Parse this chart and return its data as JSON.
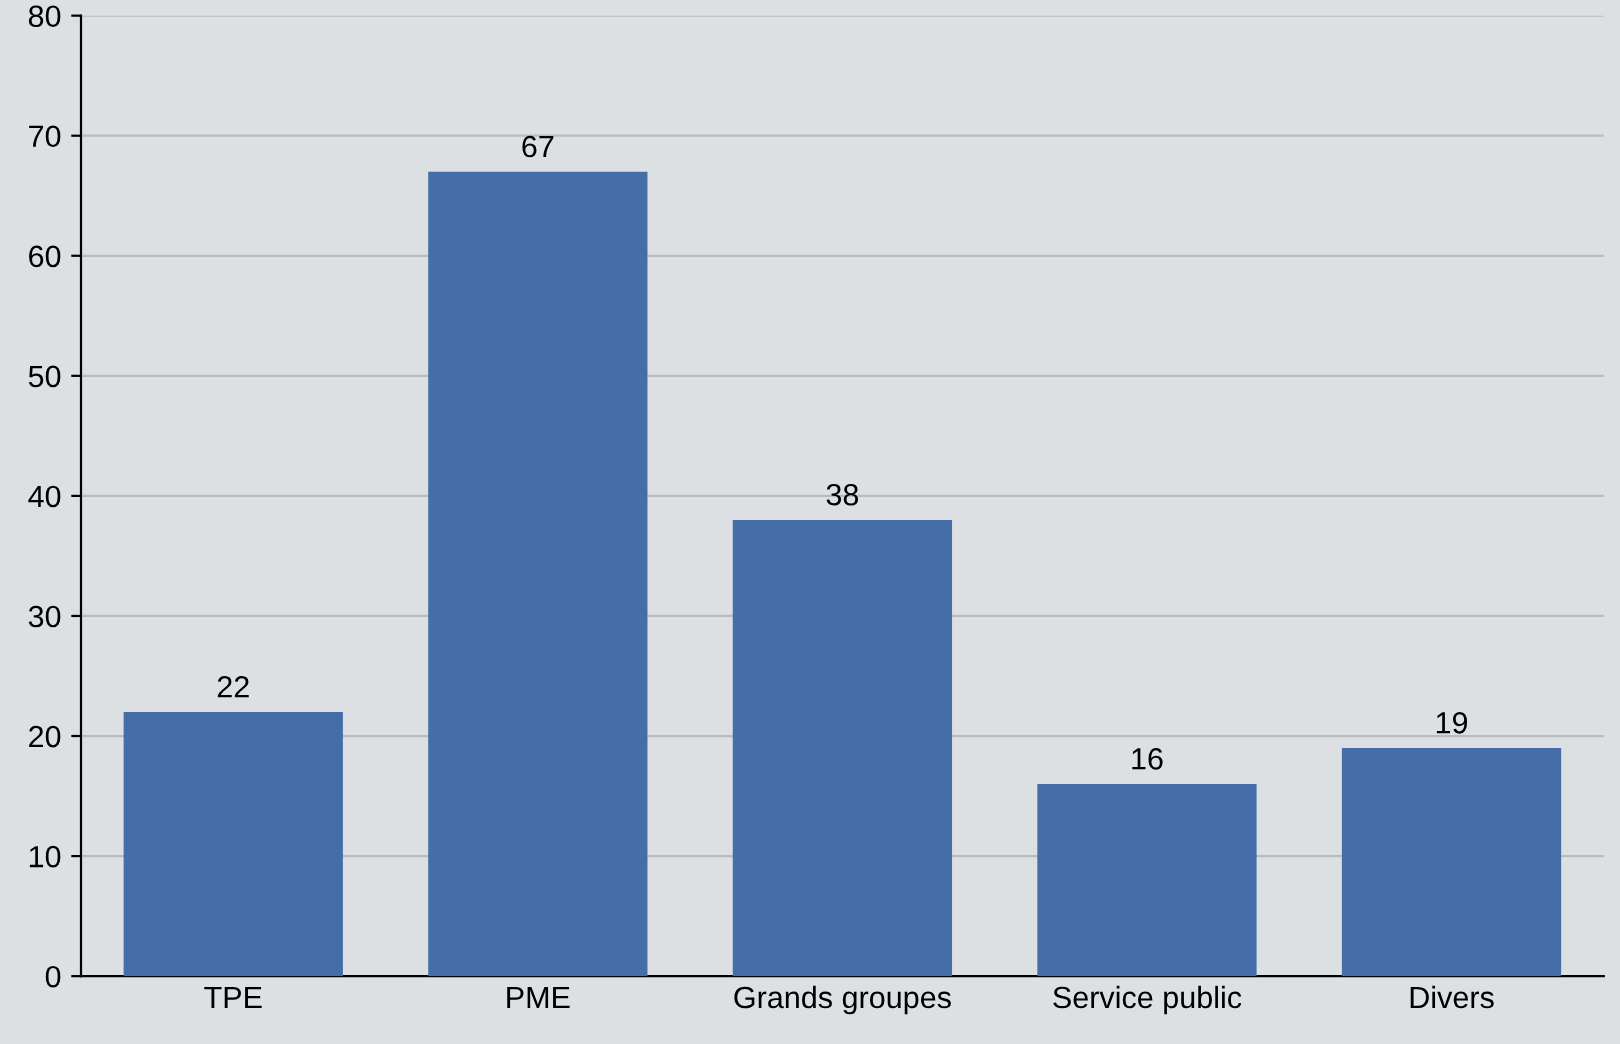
{
  "chart_data": {
    "type": "bar",
    "categories": [
      "TPE",
      "PME",
      "Grands groupes",
      "Service public",
      "Divers"
    ],
    "values": [
      22,
      67,
      38,
      16,
      19
    ],
    "color": "#456ea8",
    "ylim": [
      0,
      80
    ],
    "yticks": [
      0,
      10,
      20,
      30,
      40,
      50,
      60,
      70,
      80
    ],
    "grid": "y",
    "data_labels": true
  }
}
